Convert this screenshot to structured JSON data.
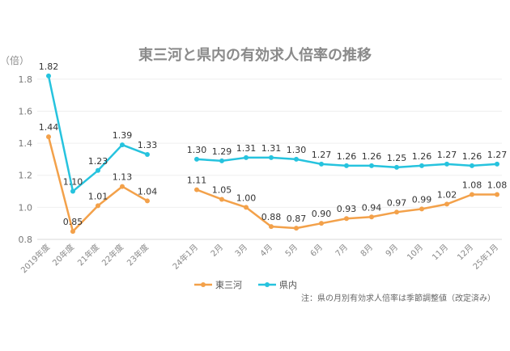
{
  "chart_data": {
    "type": "line",
    "title": "東三河と県内の有効求人倍率の推移",
    "yunit": "（倍）",
    "ylim": [
      0.8,
      1.9
    ],
    "yticks": [
      "0.8",
      "1.0",
      "1.2",
      "1.4",
      "1.6",
      "1.8"
    ],
    "ytick_values": [
      0.8,
      1.0,
      1.2,
      1.4,
      1.6,
      1.8
    ],
    "grid": true,
    "legend": "bottom-left",
    "note": "注：県の月別有効求人倍率は季節調整値（改定済み）",
    "categories": [
      "2019年度",
      "20年度",
      "21年度",
      "22年度",
      "23年度",
      "24年1月",
      "2月",
      "3月",
      "4月",
      "5月",
      "6月",
      "7月",
      "8月",
      "9月",
      "10月",
      "11月",
      "12月",
      "25年1月"
    ],
    "segments": [
      [
        0,
        4
      ],
      [
        5,
        17
      ]
    ],
    "series": [
      {
        "name": "東三河",
        "color": "#f3a14a",
        "values": [
          1.44,
          0.85,
          1.01,
          1.13,
          1.04,
          1.11,
          1.05,
          1.0,
          0.88,
          0.87,
          0.9,
          0.93,
          0.94,
          0.97,
          0.99,
          1.02,
          1.08,
          1.08
        ],
        "labels": [
          "1.44",
          "0.85",
          "1.01",
          "1.13",
          "1.04",
          "1.11",
          "1.05",
          "1.00",
          "0.88",
          "0.87",
          "0.90",
          "0.93",
          "0.94",
          "0.97",
          "0.99",
          "1.02",
          "1.08",
          "1.08"
        ]
      },
      {
        "name": "県内",
        "color": "#26c3de",
        "values": [
          1.82,
          1.1,
          1.23,
          1.39,
          1.33,
          1.3,
          1.29,
          1.31,
          1.31,
          1.3,
          1.27,
          1.26,
          1.26,
          1.25,
          1.26,
          1.27,
          1.26,
          1.27
        ],
        "labels": [
          "1.82",
          "1.10",
          "1.23",
          "1.39",
          "1.33",
          "1.30",
          "1.29",
          "1.31",
          "1.31",
          "1.30",
          "1.27",
          "1.26",
          "1.26",
          "1.25",
          "1.26",
          "1.27",
          "1.26",
          "1.27"
        ]
      }
    ]
  }
}
